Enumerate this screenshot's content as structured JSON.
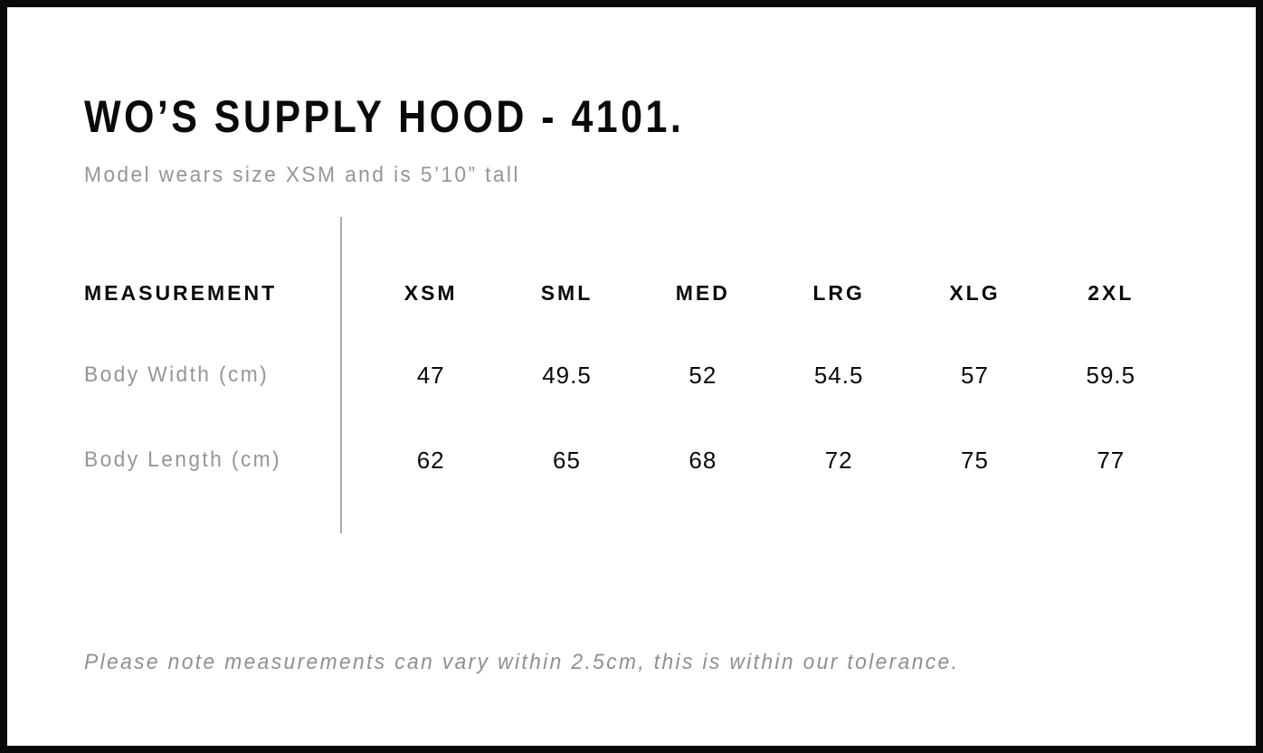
{
  "header": {
    "title": "WO’S SUPPLY HOOD - 4101.",
    "model_note": "Model wears size XSM and is 5’10” tall"
  },
  "table": {
    "measurement_header": "MEASUREMENT",
    "sizes": [
      "XSM",
      "SML",
      "MED",
      "LRG",
      "XLG",
      "2XL"
    ],
    "rows": [
      {
        "label": "Body Width (cm)",
        "values": [
          "47",
          "49.5",
          "52",
          "54.5",
          "57",
          "59.5"
        ]
      },
      {
        "label": "Body Length (cm)",
        "values": [
          "62",
          "65",
          "68",
          "72",
          "75",
          "77"
        ]
      }
    ]
  },
  "footer": {
    "note": "Please note measurements can vary within 2.5cm, this is within our tolerance."
  },
  "colors": {
    "ink": "#0a0a0a",
    "muted": "#969696",
    "note": "#8f8f8f",
    "divider": "#ababab",
    "paper": "#ffffff"
  }
}
